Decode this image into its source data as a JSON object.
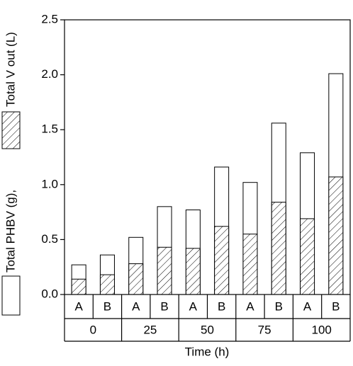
{
  "chart_data": {
    "type": "bar",
    "x_label": "Time (h)",
    "categories": [
      "A",
      "B",
      "A",
      "B",
      "A",
      "B",
      "A",
      "B",
      "A",
      "B"
    ],
    "groups": [
      "0",
      "25",
      "50",
      "75",
      "100"
    ],
    "series": [
      {
        "name": "Total V out (L)",
        "color": "#ffffff",
        "values": [
          0.27,
          0.36,
          0.52,
          0.8,
          0.77,
          1.16,
          1.02,
          1.56,
          1.29,
          2.01
        ]
      },
      {
        "name": "Total PHBV (g),",
        "color": "hatched",
        "values": [
          0.14,
          0.18,
          0.28,
          0.43,
          0.42,
          0.62,
          0.55,
          0.84,
          0.69,
          1.07
        ]
      }
    ],
    "ylim": [
      0,
      2.5
    ],
    "yticks": [
      {
        "value": 0,
        "label": "0.0"
      },
      {
        "value": 0.5,
        "label": "0.5"
      },
      {
        "value": 1,
        "label": "1.0"
      },
      {
        "value": 1.5,
        "label": "1.5"
      },
      {
        "value": 2,
        "label": "2.0"
      },
      {
        "value": 2.5,
        "label": "2.5"
      }
    ]
  }
}
